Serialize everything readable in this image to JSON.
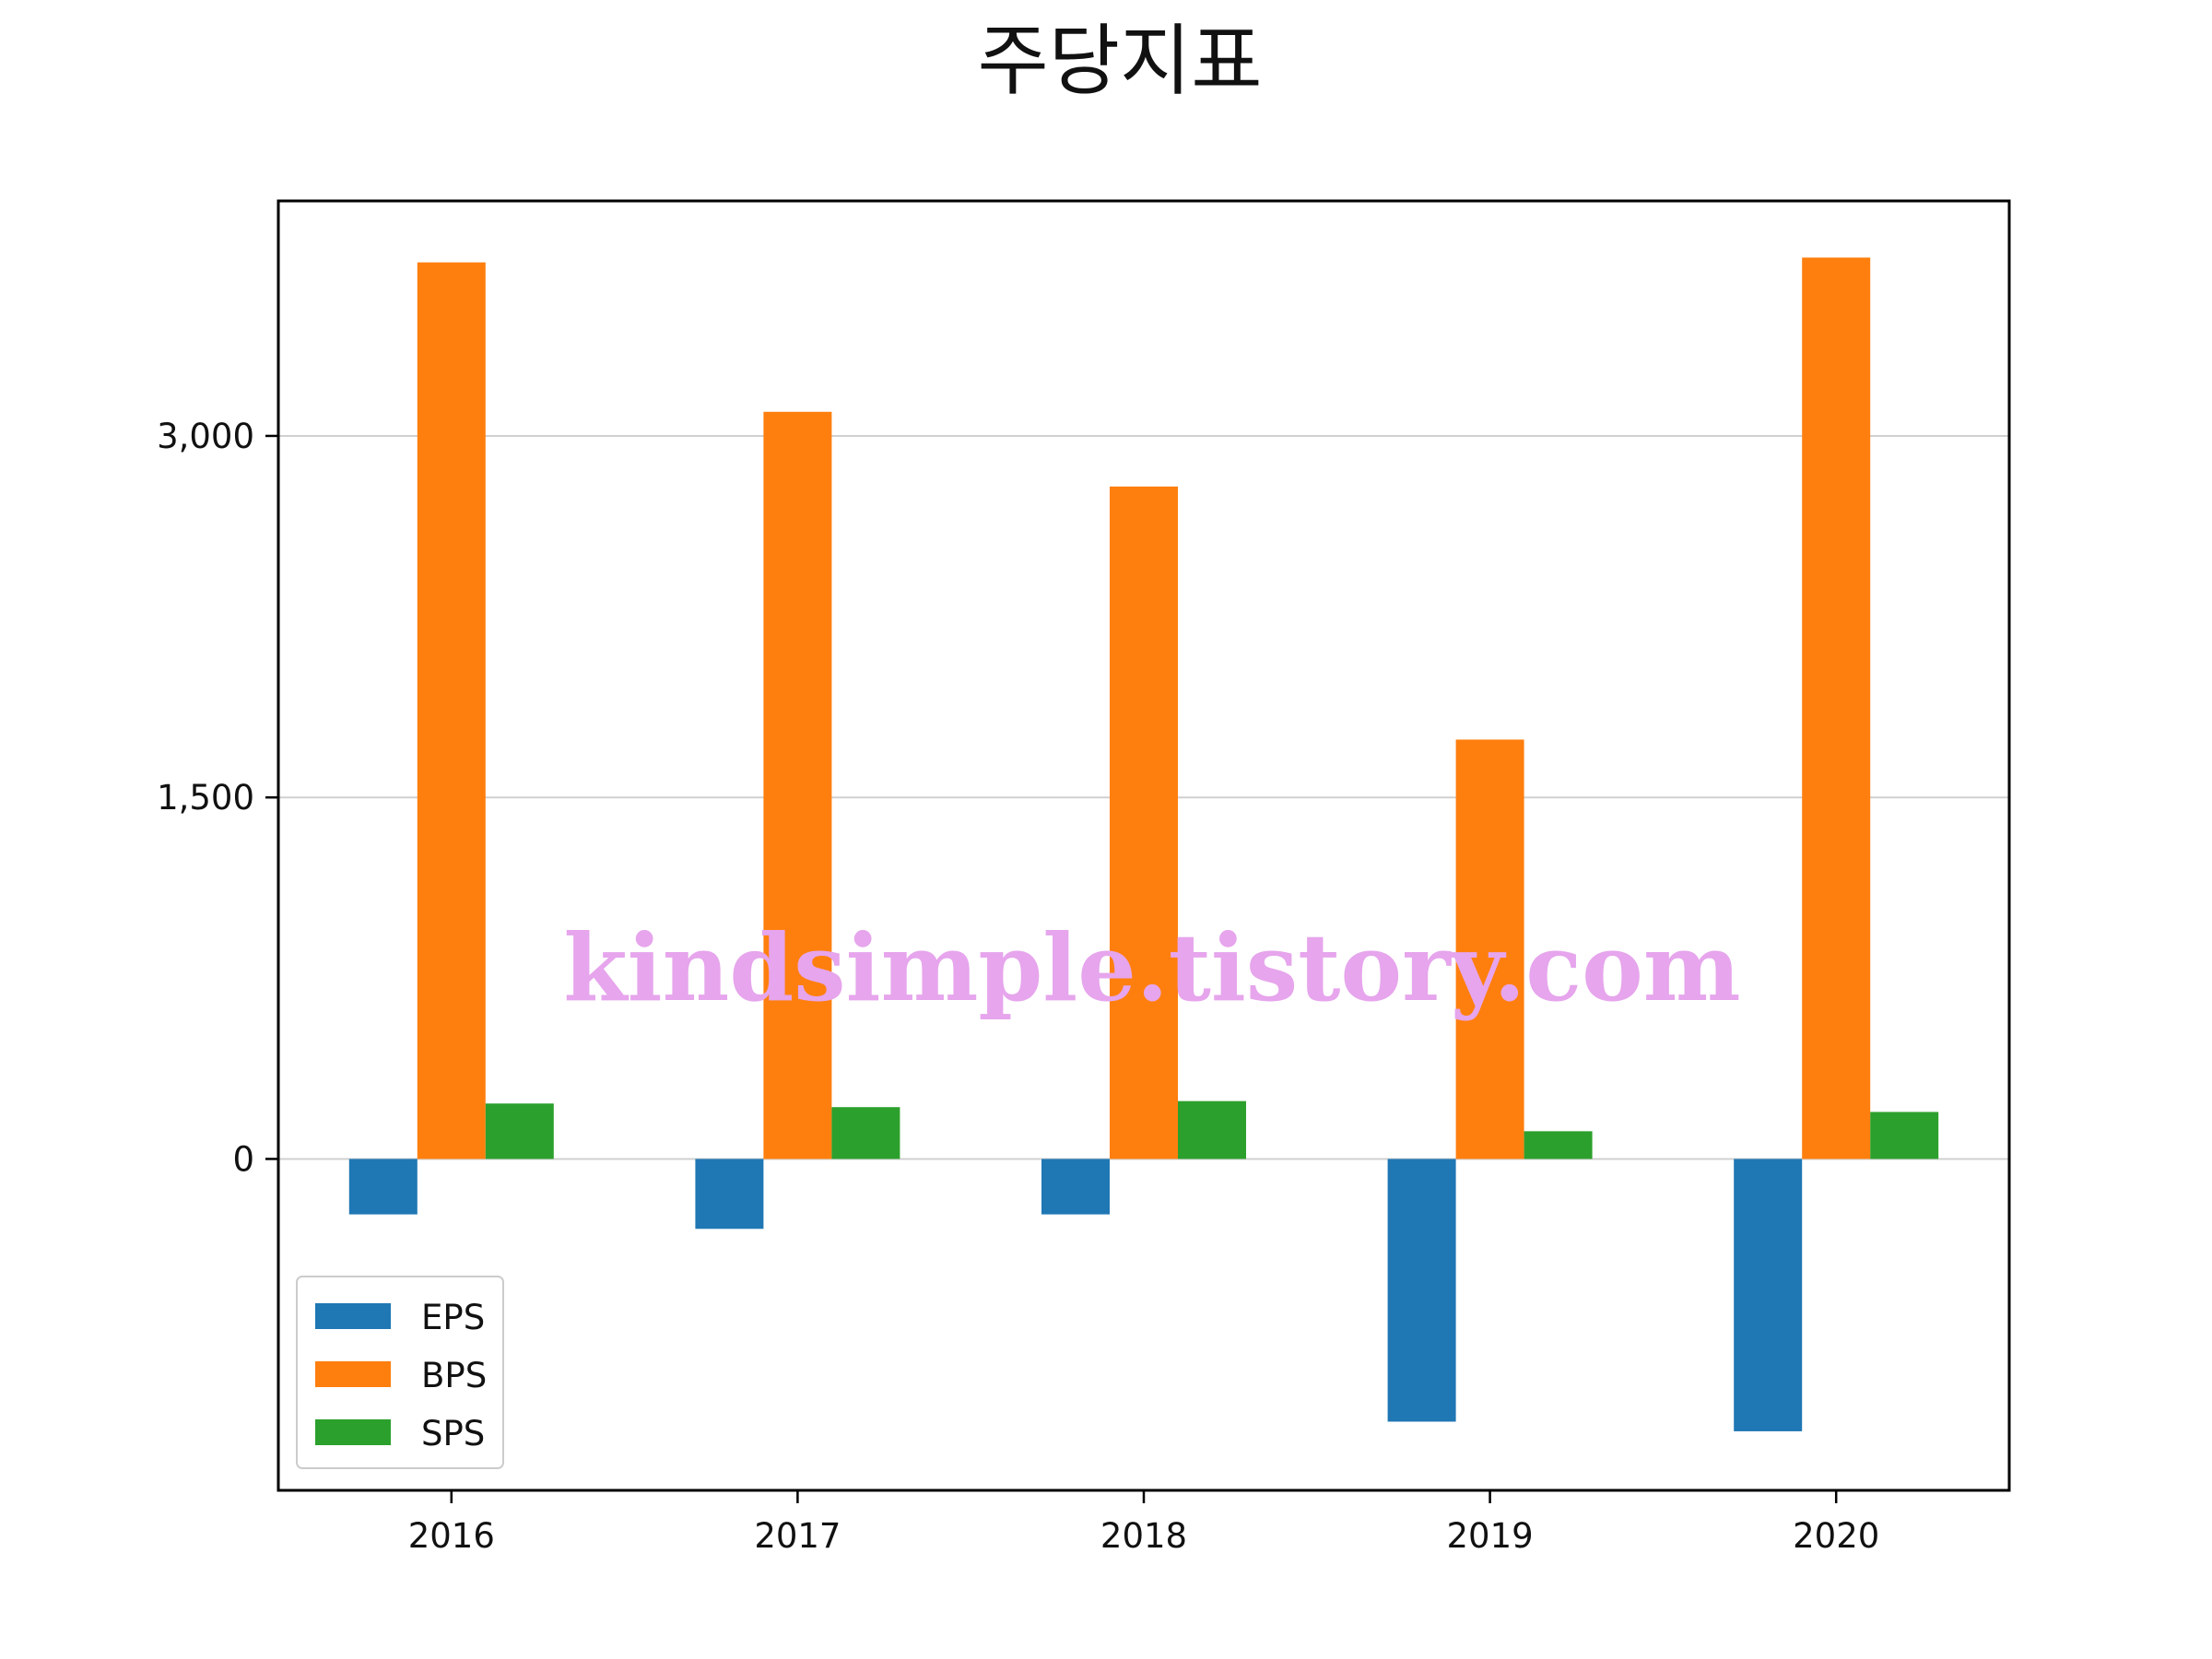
{
  "chart_data": {
    "type": "bar",
    "title": "주당지표",
    "xlabel": "",
    "ylabel": "",
    "categories": [
      "2016",
      "2017",
      "2018",
      "2019",
      "2020"
    ],
    "series": [
      {
        "name": "EPS",
        "color": "#1f77b4",
        "values": [
          -230,
          -290,
          -230,
          -1090,
          -1130
        ]
      },
      {
        "name": "BPS",
        "color": "#ff7f0e",
        "values": [
          3720,
          3100,
          2790,
          1740,
          3740
        ]
      },
      {
        "name": "SPS",
        "color": "#2ca02c",
        "values": [
          230,
          215,
          240,
          115,
          195
        ]
      }
    ],
    "ylim": [
      -1375,
      3975
    ],
    "yticks": [
      0,
      1500,
      3000
    ],
    "ytick_labels": [
      "0",
      "1,500",
      "3,000"
    ],
    "grid": "horizontal",
    "legend_position": "lower-left"
  },
  "watermark": "kindsimple.tistory.com"
}
